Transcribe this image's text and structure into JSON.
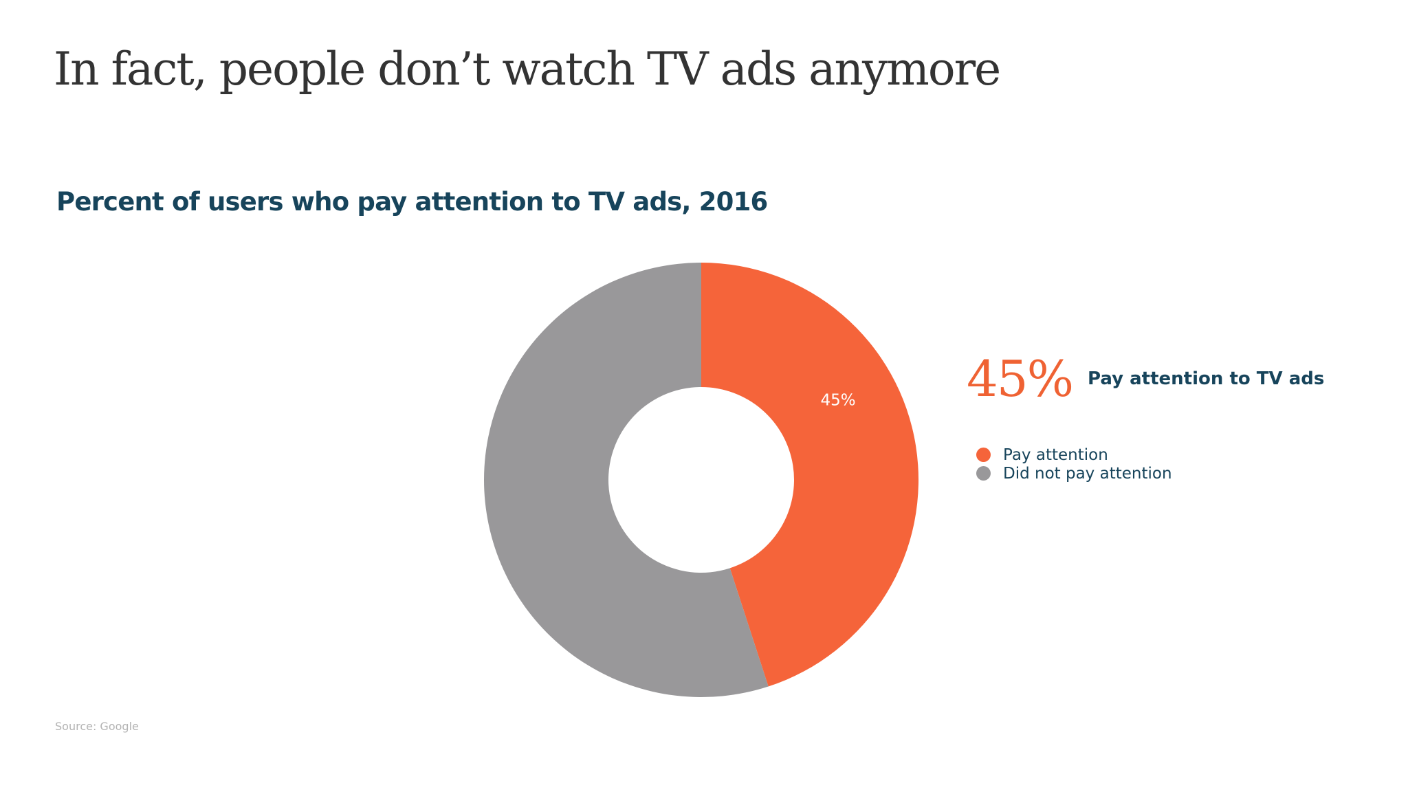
{
  "slide": {
    "title": "In fact, people don’t watch TV ads anymore",
    "source": "Source: Google"
  },
  "highlight": {
    "value": "45%",
    "label": "Pay attention to TV ads"
  },
  "colors": {
    "pay_attention": "#f5643a",
    "did_not_pay_attention": "#99989a",
    "highlight": "#ef6233",
    "heading": "#17445b"
  },
  "chart_data": {
    "type": "pie",
    "variant": "donut",
    "title": "Percent of users who pay attention to TV ads, 2016",
    "legend_position": "right",
    "slices": [
      {
        "label": "Pay attention",
        "value": 45,
        "data_label": "45%",
        "color": "#f5643a"
      },
      {
        "label": "Did not pay attention",
        "value": 55,
        "data_label": "",
        "color": "#99989a"
      }
    ]
  }
}
